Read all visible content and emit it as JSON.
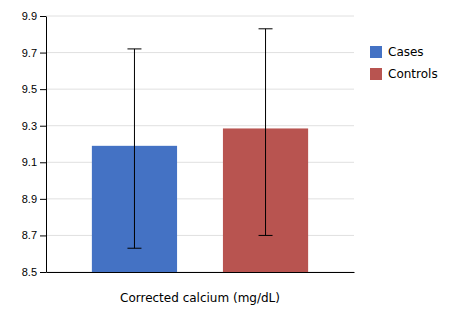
{
  "chart_data": {
    "type": "bar",
    "categories": [
      "Cases",
      "Controls"
    ],
    "values": [
      9.19,
      9.285
    ],
    "error_lower": [
      0.56,
      0.585
    ],
    "error_upper": [
      0.53,
      0.545
    ],
    "colors": [
      "#4472C4",
      "#B85450"
    ],
    "xlabel": "Corrected calcium (mg/dL)",
    "ylim": [
      8.5,
      9.9
    ],
    "yticks": [
      8.5,
      8.7,
      8.9,
      9.1,
      9.3,
      9.5,
      9.7,
      9.9
    ],
    "grid": true,
    "legend": "right",
    "tick_labels": "y"
  }
}
